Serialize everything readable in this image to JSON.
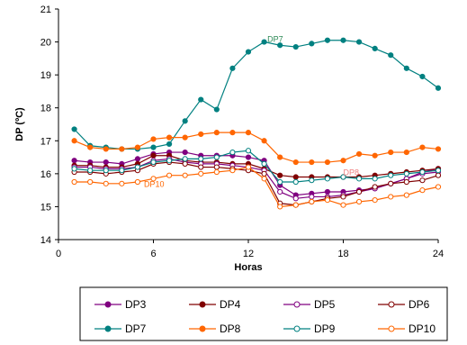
{
  "chart_data": {
    "type": "line",
    "title": "",
    "xlabel": "Horas",
    "ylabel": "DP (ºC)",
    "xlim": [
      0,
      24
    ],
    "ylim": [
      14,
      21
    ],
    "x_ticks": [
      0,
      6,
      12,
      18,
      24
    ],
    "y_ticks": [
      14,
      15,
      16,
      17,
      18,
      19,
      20,
      21
    ],
    "grid": false,
    "legend_position": "bottom",
    "x": [
      1,
      2,
      3,
      4,
      5,
      6,
      7,
      8,
      9,
      10,
      11,
      12,
      13,
      14,
      15,
      16,
      17,
      18,
      19,
      20,
      21,
      22,
      23,
      24
    ],
    "series": [
      {
        "name": "DP3",
        "color": "#800080",
        "marker": "filled-circle",
        "values": [
          16.4,
          16.35,
          16.35,
          16.3,
          16.45,
          16.6,
          16.65,
          16.65,
          16.55,
          16.55,
          16.55,
          16.5,
          16.4,
          15.65,
          15.35,
          15.4,
          15.45,
          15.45,
          15.5,
          15.55,
          15.7,
          15.85,
          16.05,
          16.15
        ]
      },
      {
        "name": "DP4",
        "color": "#800000",
        "marker": "filled-circle",
        "values": [
          16.25,
          16.25,
          16.2,
          16.2,
          16.3,
          16.55,
          16.55,
          16.4,
          16.35,
          16.35,
          16.3,
          16.3,
          16.15,
          15.95,
          15.9,
          15.9,
          15.9,
          15.9,
          15.9,
          15.95,
          16.0,
          16.05,
          16.1,
          16.15
        ]
      },
      {
        "name": "DP5",
        "color": "#800080",
        "marker": "open-circle",
        "values": [
          16.2,
          16.2,
          16.15,
          16.15,
          16.2,
          16.4,
          16.45,
          16.35,
          16.3,
          16.3,
          16.25,
          16.2,
          16.1,
          15.45,
          15.25,
          15.3,
          15.3,
          15.35,
          15.45,
          15.55,
          15.7,
          15.85,
          16.0,
          16.05
        ]
      },
      {
        "name": "DP6",
        "color": "#800000",
        "marker": "open-circle",
        "values": [
          16.05,
          16.05,
          16.0,
          16.05,
          16.1,
          16.3,
          16.35,
          16.3,
          16.2,
          16.2,
          16.15,
          16.1,
          16.0,
          15.1,
          15.05,
          15.15,
          15.25,
          15.3,
          15.45,
          15.6,
          15.7,
          15.75,
          15.8,
          15.95
        ]
      },
      {
        "name": "DP7",
        "color": "#008080",
        "marker": "filled-circle",
        "values": [
          17.35,
          16.85,
          16.8,
          16.75,
          16.75,
          16.8,
          16.9,
          17.6,
          18.25,
          17.95,
          19.2,
          19.7,
          20.0,
          19.9,
          19.85,
          19.95,
          20.05,
          20.05,
          20.0,
          19.8,
          19.6,
          19.2,
          18.95,
          18.6
        ]
      },
      {
        "name": "DP8",
        "color": "#ff6600",
        "marker": "filled-circle",
        "values": [
          17.0,
          16.8,
          16.75,
          16.75,
          16.8,
          17.05,
          17.1,
          17.1,
          17.2,
          17.25,
          17.25,
          17.25,
          17.0,
          16.5,
          16.35,
          16.35,
          16.35,
          16.4,
          16.6,
          16.55,
          16.65,
          16.65,
          16.8,
          16.75
        ]
      },
      {
        "name": "DP9",
        "color": "#008080",
        "marker": "open-circle",
        "values": [
          16.15,
          16.1,
          16.1,
          16.1,
          16.2,
          16.35,
          16.4,
          16.45,
          16.45,
          16.5,
          16.65,
          16.7,
          16.3,
          15.75,
          15.75,
          15.8,
          15.85,
          15.9,
          15.85,
          15.85,
          15.95,
          16.0,
          16.05,
          16.1
        ]
      },
      {
        "name": "DP10",
        "color": "#ff6600",
        "marker": "open-circle",
        "values": [
          15.75,
          15.75,
          15.7,
          15.7,
          15.75,
          15.85,
          15.95,
          15.95,
          16.0,
          16.05,
          16.1,
          16.2,
          15.85,
          15.0,
          15.05,
          15.15,
          15.2,
          15.05,
          15.15,
          15.2,
          15.3,
          15.35,
          15.5,
          15.6
        ]
      }
    ],
    "annotations": [
      {
        "text": "DP7",
        "x": 13.2,
        "y": 20.0,
        "color": "#2e8b57"
      },
      {
        "text": "DP8",
        "x": 18.0,
        "y": 15.95,
        "color": "#f08080"
      },
      {
        "text": "DP10",
        "x": 5.4,
        "y": 15.6,
        "color": "#ff6600"
      }
    ]
  }
}
